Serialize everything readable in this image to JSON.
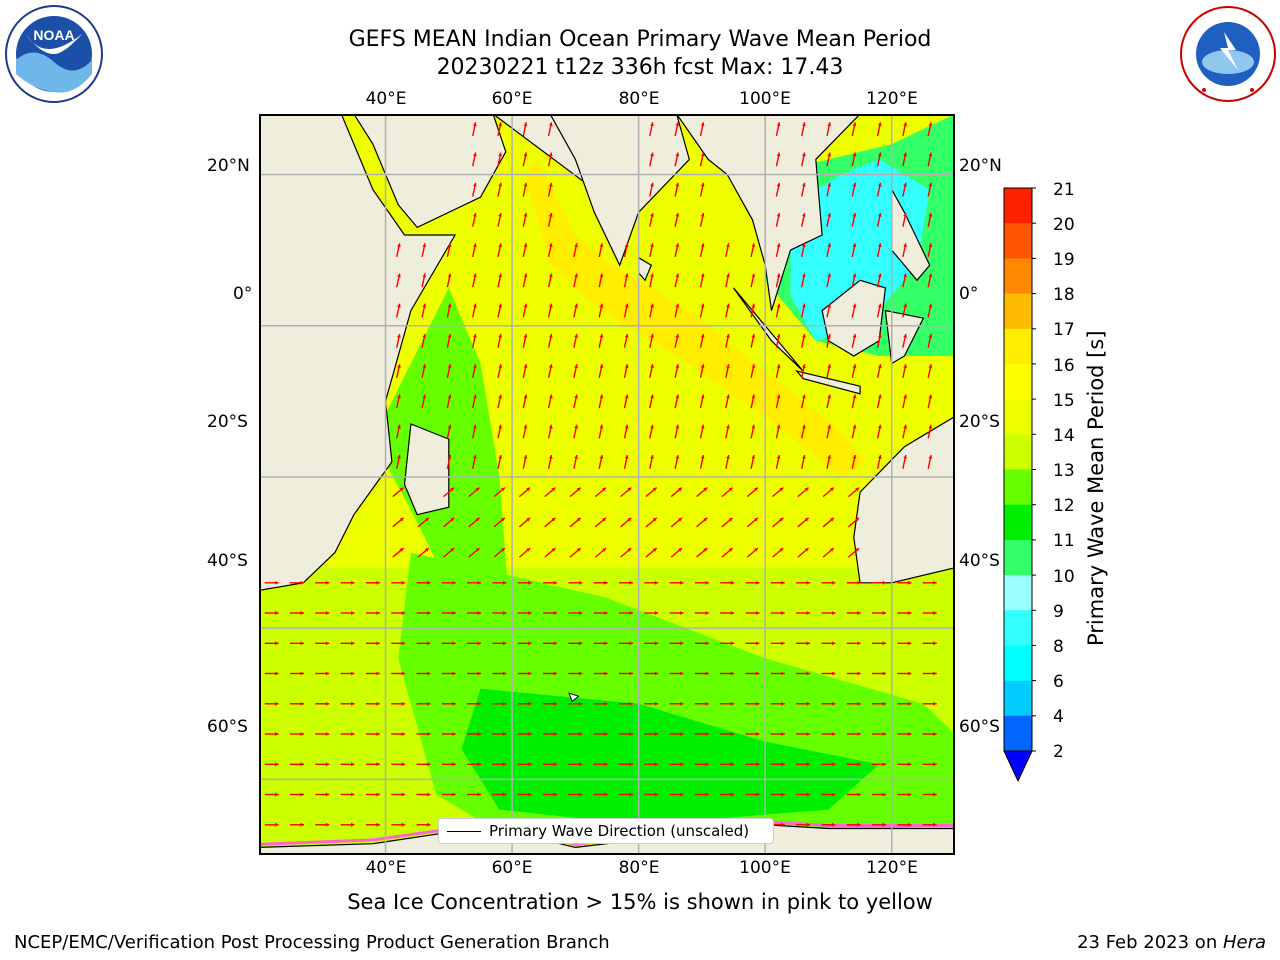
{
  "title": {
    "line1": "GEFS MEAN Indian Ocean Primary Wave Mean Period",
    "line2": "20230221 t12z 336h fcst   Max: 17.43"
  },
  "map": {
    "lon_ticks": [
      "40°E",
      "60°E",
      "80°E",
      "100°E",
      "120°E"
    ],
    "lat_ticks": [
      "20°N",
      "0°",
      "20°S",
      "40°S",
      "60°S"
    ],
    "lon_range": [
      20,
      130
    ],
    "lat_range": [
      -70,
      28
    ],
    "land_color": "#efeddc",
    "coast_color": "#000000",
    "arrow_color": "#ff0000",
    "legend_label": "Primary Wave Direction (unscaled)"
  },
  "colorbar": {
    "title": "Primary Wave Mean Period [s]",
    "tick_labels": [
      "21",
      "20",
      "19",
      "18",
      "17",
      "16",
      "15",
      "14",
      "13",
      "12",
      "11",
      "10",
      "9",
      "8",
      "6",
      "4",
      "2"
    ],
    "levels": [
      2,
      4,
      6,
      8,
      9,
      10,
      11,
      12,
      13,
      14,
      15,
      16,
      17,
      18,
      19,
      20,
      21
    ],
    "colors": [
      "#0066ff",
      "#00ccff",
      "#00ffff",
      "#33ffff",
      "#99ffff",
      "#33ff66",
      "#00ee00",
      "#66ff00",
      "#ccff00",
      "#eeff00",
      "#ffff00",
      "#ffee00",
      "#ffbb00",
      "#ff8800",
      "#ff5500",
      "#ff2200"
    ],
    "under_color": "#0000ff"
  },
  "subtitle": "Sea Ice Concentration > 15% is shown in pink to yellow",
  "footer": {
    "left": "NCEP/EMC/Verification Post Processing Product Generation Branch",
    "right_date": "23 Feb 2023 on ",
    "right_machine": "Hera"
  },
  "logos": {
    "left_text": "NOAA",
    "left_ring": "NATIONAL OCEANIC AND ATMOSPHERIC ADMINISTRATION · U.S. DEPARTMENT OF COMMERCE",
    "right_ring": "NATIONAL WEATHER SERVICE"
  }
}
